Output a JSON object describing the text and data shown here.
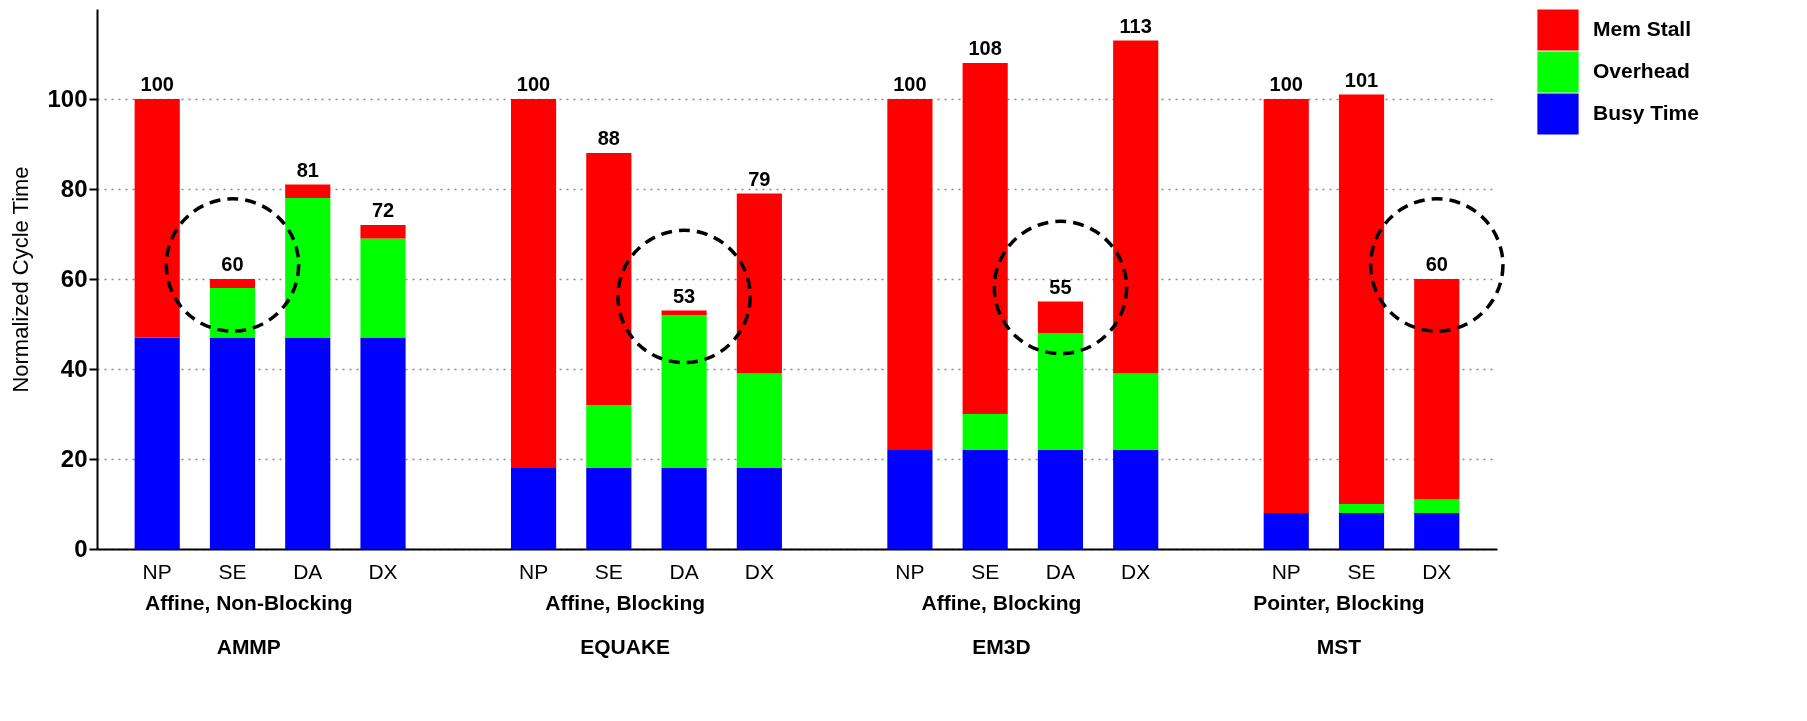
{
  "chart_data": {
    "type": "bar",
    "stacked": true,
    "ylabel": "Normalized Cycle Time",
    "categories": [
      "NP",
      "SE",
      "DA",
      "DX",
      null,
      "NP",
      "SE",
      "DA",
      "DX",
      null,
      "NP",
      "SE",
      "DA",
      "DX",
      null,
      "NP",
      "SE",
      "DX"
    ],
    "series": [
      {
        "name": "Busy Time",
        "color": "#0000ff",
        "values": [
          47,
          47,
          47,
          47,
          null,
          18,
          18,
          18,
          18,
          null,
          22,
          22,
          22,
          22,
          null,
          8,
          8,
          8
        ]
      },
      {
        "name": "Overhead",
        "color": "#00ff00",
        "values": [
          0,
          11,
          31,
          22,
          null,
          0,
          14,
          34,
          21,
          null,
          0,
          8,
          26,
          17,
          null,
          0,
          2,
          3
        ]
      },
      {
        "name": "Mem Stall",
        "color": "#ff0000",
        "values": [
          53,
          2,
          3,
          3,
          null,
          82,
          56,
          1,
          40,
          null,
          78,
          78,
          7,
          74,
          null,
          92,
          91,
          49
        ]
      }
    ],
    "totals": [
      "100",
      "60",
      "81",
      "72",
      null,
      "100",
      "88",
      "53",
      "79",
      null,
      "100",
      "108",
      "55",
      "113",
      null,
      "100",
      "101",
      "60"
    ],
    "annotations": [
      "Affine, Non-Blocking",
      "AMMP",
      "Affine, Blocking",
      "EQUAKE",
      "Affine, Blocking",
      "EM3D",
      "Pointer, Blocking",
      "MST"
    ],
    "ylim": [
      0,
      120
    ],
    "yticks": [
      0,
      20,
      40,
      60,
      80,
      100
    ],
    "grid": "y",
    "legend": "right"
  }
}
